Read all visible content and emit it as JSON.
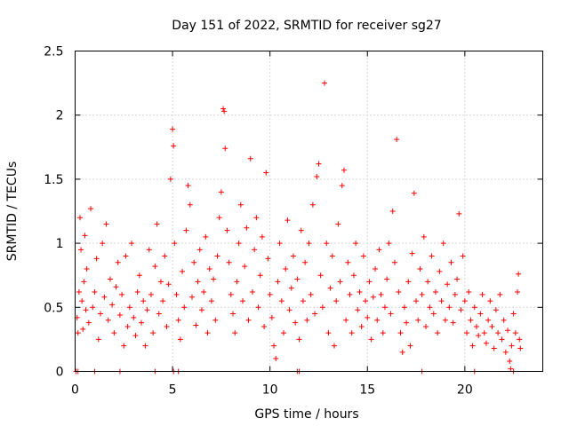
{
  "chart_data": {
    "type": "scatter",
    "title": "Day 151 of 2022, SRMTID for receiver sg27",
    "xlabel": "GPS time / hours",
    "ylabel": "SRMTID / TECUs",
    "xlim": [
      0,
      24
    ],
    "ylim": [
      0,
      2.5
    ],
    "x_ticks": [
      0,
      5,
      10,
      15,
      20
    ],
    "x_tick_labels": [
      "0",
      "5",
      "10",
      "15",
      "20"
    ],
    "y_ticks": [
      0,
      0.5,
      1,
      1.5,
      2,
      2.5
    ],
    "y_tick_labels": [
      "0",
      "0.5",
      "1",
      "1.5",
      "2",
      "2.5"
    ],
    "grid": true,
    "marker": "plus",
    "series_color": "#ff0000",
    "series": [
      {
        "name": "SRMTID",
        "points": [
          [
            0.1,
            0.42
          ],
          [
            0.15,
            0.3
          ],
          [
            0.2,
            0.62
          ],
          [
            0.25,
            1.2
          ],
          [
            0.3,
            0.95
          ],
          [
            0.35,
            0.55
          ],
          [
            0.4,
            0.33
          ],
          [
            0.45,
            0.7
          ],
          [
            0.5,
            1.06
          ],
          [
            0.55,
            0.48
          ],
          [
            0.6,
            0.8
          ],
          [
            0.7,
            0.38
          ],
          [
            0.8,
            1.27
          ],
          [
            0.9,
            0.5
          ],
          [
            1.0,
            0.62
          ],
          [
            1.1,
            0.88
          ],
          [
            1.2,
            0.25
          ],
          [
            1.3,
            0.45
          ],
          [
            1.4,
            1.0
          ],
          [
            1.5,
            0.58
          ],
          [
            1.6,
            1.15
          ],
          [
            1.7,
            0.4
          ],
          [
            1.8,
            0.72
          ],
          [
            1.9,
            0.52
          ],
          [
            2.0,
            0.3
          ],
          [
            2.1,
            0.66
          ],
          [
            2.2,
            0.85
          ],
          [
            2.3,
            0.44
          ],
          [
            2.4,
            0.6
          ],
          [
            2.5,
            0.2
          ],
          [
            2.6,
            0.9
          ],
          [
            2.7,
            0.35
          ],
          [
            2.8,
            0.5
          ],
          [
            2.9,
            1.0
          ],
          [
            3.0,
            0.42
          ],
          [
            3.1,
            0.28
          ],
          [
            3.2,
            0.62
          ],
          [
            3.3,
            0.75
          ],
          [
            3.4,
            0.38
          ],
          [
            3.5,
            0.55
          ],
          [
            3.6,
            0.2
          ],
          [
            3.7,
            0.48
          ],
          [
            3.8,
            0.95
          ],
          [
            3.9,
            0.6
          ],
          [
            4.0,
            0.3
          ],
          [
            4.1,
            0.82
          ],
          [
            4.2,
            1.15
          ],
          [
            4.3,
            0.45
          ],
          [
            4.4,
            0.7
          ],
          [
            4.5,
            0.55
          ],
          [
            4.6,
            0.9
          ],
          [
            4.7,
            0.35
          ],
          [
            4.8,
            0.68
          ],
          [
            4.9,
            1.5
          ],
          [
            5.0,
            1.89
          ],
          [
            5.05,
            1.76
          ],
          [
            5.1,
            1.0
          ],
          [
            5.2,
            0.6
          ],
          [
            5.3,
            0.4
          ],
          [
            5.4,
            0.25
          ],
          [
            5.5,
            0.78
          ],
          [
            5.6,
            0.5
          ],
          [
            5.7,
            1.1
          ],
          [
            5.8,
            1.45
          ],
          [
            5.9,
            1.3
          ],
          [
            6.0,
            0.58
          ],
          [
            6.1,
            0.85
          ],
          [
            6.2,
            0.36
          ],
          [
            6.3,
            0.7
          ],
          [
            6.4,
            0.95
          ],
          [
            6.5,
            0.48
          ],
          [
            6.6,
            0.62
          ],
          [
            6.7,
            1.05
          ],
          [
            6.8,
            0.3
          ],
          [
            6.9,
            0.8
          ],
          [
            7.0,
            0.55
          ],
          [
            7.1,
            0.72
          ],
          [
            7.2,
            0.4
          ],
          [
            7.3,
            0.9
          ],
          [
            7.4,
            1.2
          ],
          [
            7.5,
            1.4
          ],
          [
            7.6,
            2.05
          ],
          [
            7.65,
            2.03
          ],
          [
            7.7,
            1.74
          ],
          [
            7.8,
            1.1
          ],
          [
            7.9,
            0.85
          ],
          [
            8.0,
            0.6
          ],
          [
            8.1,
            0.45
          ],
          [
            8.2,
            0.3
          ],
          [
            8.3,
            0.7
          ],
          [
            8.4,
            1.0
          ],
          [
            8.5,
            1.3
          ],
          [
            8.6,
            0.55
          ],
          [
            8.7,
            0.82
          ],
          [
            8.8,
            1.12
          ],
          [
            8.9,
            0.4
          ],
          [
            9.0,
            1.66
          ],
          [
            9.1,
            0.62
          ],
          [
            9.2,
            0.95
          ],
          [
            9.3,
            1.2
          ],
          [
            9.4,
            0.5
          ],
          [
            9.5,
            0.75
          ],
          [
            9.6,
            1.05
          ],
          [
            9.7,
            0.35
          ],
          [
            9.8,
            1.55
          ],
          [
            9.9,
            0.88
          ],
          [
            10.0,
            0.6
          ],
          [
            10.1,
            0.42
          ],
          [
            10.2,
            0.2
          ],
          [
            10.3,
            0.1
          ],
          [
            10.4,
            0.7
          ],
          [
            10.5,
            1.0
          ],
          [
            10.6,
            0.55
          ],
          [
            10.7,
            0.3
          ],
          [
            10.8,
            0.8
          ],
          [
            10.9,
            1.18
          ],
          [
            11.0,
            0.48
          ],
          [
            11.1,
            0.65
          ],
          [
            11.2,
            0.9
          ],
          [
            11.3,
            0.38
          ],
          [
            11.4,
            0.72
          ],
          [
            11.5,
            0.25
          ],
          [
            11.6,
            1.1
          ],
          [
            11.7,
            0.55
          ],
          [
            11.8,
            0.85
          ],
          [
            11.9,
            0.4
          ],
          [
            12.0,
            1.0
          ],
          [
            12.1,
            0.6
          ],
          [
            12.2,
            1.3
          ],
          [
            12.3,
            0.45
          ],
          [
            12.4,
            1.52
          ],
          [
            12.5,
            1.62
          ],
          [
            12.6,
            0.75
          ],
          [
            12.7,
            0.5
          ],
          [
            12.8,
            2.25
          ],
          [
            12.9,
            1.0
          ],
          [
            13.0,
            0.3
          ],
          [
            13.1,
            0.65
          ],
          [
            13.2,
            0.9
          ],
          [
            13.3,
            0.2
          ],
          [
            13.4,
            0.55
          ],
          [
            13.5,
            1.15
          ],
          [
            13.6,
            0.7
          ],
          [
            13.7,
            1.45
          ],
          [
            13.8,
            1.57
          ],
          [
            13.9,
            0.4
          ],
          [
            14.0,
            0.85
          ],
          [
            14.1,
            0.6
          ],
          [
            14.2,
            0.3
          ],
          [
            14.3,
            0.75
          ],
          [
            14.4,
            1.0
          ],
          [
            14.5,
            0.48
          ],
          [
            14.6,
            0.62
          ],
          [
            14.7,
            0.35
          ],
          [
            14.8,
            0.9
          ],
          [
            14.9,
            0.55
          ],
          [
            15.0,
            0.42
          ],
          [
            15.1,
            0.7
          ],
          [
            15.2,
            0.25
          ],
          [
            15.3,
            0.58
          ],
          [
            15.4,
            0.8
          ],
          [
            15.5,
            0.4
          ],
          [
            15.6,
            0.95
          ],
          [
            15.7,
            0.6
          ],
          [
            15.8,
            0.3
          ],
          [
            15.9,
            0.5
          ],
          [
            16.0,
            0.72
          ],
          [
            16.1,
            1.0
          ],
          [
            16.2,
            0.45
          ],
          [
            16.3,
            1.25
          ],
          [
            16.4,
            0.85
          ],
          [
            16.5,
            1.81
          ],
          [
            16.6,
            0.62
          ],
          [
            16.7,
            0.3
          ],
          [
            16.8,
            0.15
          ],
          [
            16.9,
            0.5
          ],
          [
            17.0,
            0.38
          ],
          [
            17.1,
            0.7
          ],
          [
            17.2,
            0.2
          ],
          [
            17.3,
            0.92
          ],
          [
            17.4,
            1.39
          ],
          [
            17.5,
            0.55
          ],
          [
            17.6,
            0.4
          ],
          [
            17.7,
            0.8
          ],
          [
            17.8,
            0.6
          ],
          [
            17.9,
            1.05
          ],
          [
            18.0,
            0.35
          ],
          [
            18.1,
            0.7
          ],
          [
            18.2,
            0.5
          ],
          [
            18.3,
            0.9
          ],
          [
            18.4,
            0.45
          ],
          [
            18.5,
            0.62
          ],
          [
            18.6,
            0.3
          ],
          [
            18.7,
            0.78
          ],
          [
            18.8,
            0.55
          ],
          [
            18.9,
            1.0
          ],
          [
            19.0,
            0.4
          ],
          [
            19.1,
            0.68
          ],
          [
            19.2,
            0.5
          ],
          [
            19.3,
            0.85
          ],
          [
            19.4,
            0.38
          ],
          [
            19.5,
            0.6
          ],
          [
            19.6,
            0.72
          ],
          [
            19.7,
            1.23
          ],
          [
            19.8,
            0.48
          ],
          [
            19.9,
            0.9
          ],
          [
            20.0,
            0.55
          ],
          [
            20.1,
            0.3
          ],
          [
            20.2,
            0.62
          ],
          [
            20.3,
            0.4
          ],
          [
            20.4,
            0.2
          ],
          [
            20.5,
            0.5
          ],
          [
            20.6,
            0.35
          ],
          [
            20.7,
            0.28
          ],
          [
            20.8,
            0.45
          ],
          [
            20.9,
            0.6
          ],
          [
            21.0,
            0.3
          ],
          [
            21.1,
            0.22
          ],
          [
            21.2,
            0.4
          ],
          [
            21.3,
            0.55
          ],
          [
            21.4,
            0.35
          ],
          [
            21.5,
            0.18
          ],
          [
            21.6,
            0.48
          ],
          [
            21.7,
            0.3
          ],
          [
            21.8,
            0.6
          ],
          [
            21.9,
            0.25
          ],
          [
            22.0,
            0.4
          ],
          [
            22.1,
            0.15
          ],
          [
            22.2,
            0.32
          ],
          [
            22.3,
            0.08
          ],
          [
            22.35,
            0.02
          ],
          [
            22.4,
            0.2
          ],
          [
            22.5,
            0.45
          ],
          [
            22.6,
            0.3
          ],
          [
            22.7,
            0.62
          ],
          [
            22.75,
            0.76
          ],
          [
            22.8,
            0.25
          ],
          [
            22.85,
            0.18
          ],
          [
            0.05,
            0.0
          ],
          [
            0.15,
            0.0
          ],
          [
            1.0,
            0.0
          ],
          [
            2.3,
            0.0
          ],
          [
            4.1,
            0.0
          ],
          [
            5.05,
            0.0
          ],
          [
            5.3,
            0.0
          ],
          [
            11.4,
            0.0
          ],
          [
            11.5,
            0.0
          ],
          [
            17.8,
            0.0
          ],
          [
            20.5,
            0.0
          ],
          [
            22.5,
            0.0
          ]
        ]
      }
    ]
  }
}
